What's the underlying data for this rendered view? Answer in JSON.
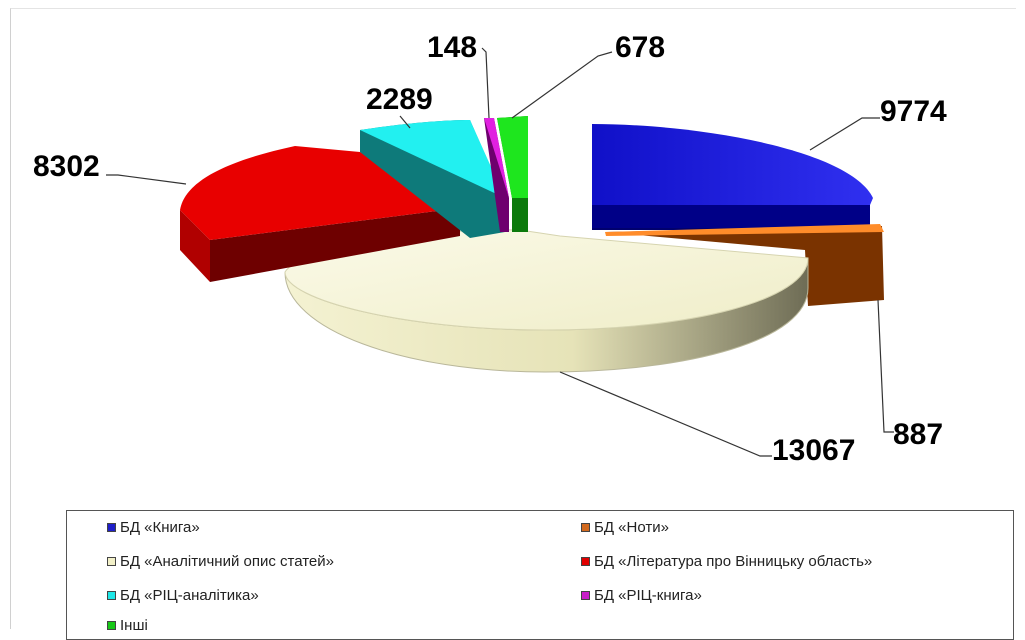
{
  "chart_data": {
    "type": "pie",
    "title": "",
    "categories": [
      "БД «Книга»",
      "БД «Ноти»",
      "БД «Аналітичний опис статей»",
      "БД «Література про Вінницьку область»",
      "БД «РІЦ-аналітика»",
      "БД «РІЦ-книга»",
      "Інші"
    ],
    "values": [
      9774,
      887,
      13067,
      8302,
      2289,
      148,
      678
    ],
    "colors": [
      "#1f1fc9",
      "#d2691e",
      "#f2f0c8",
      "#e00000",
      "#1ee6e6",
      "#c81ec8",
      "#18c818"
    ],
    "legend_position": "bottom",
    "exploded": true,
    "style": "3d"
  }
}
